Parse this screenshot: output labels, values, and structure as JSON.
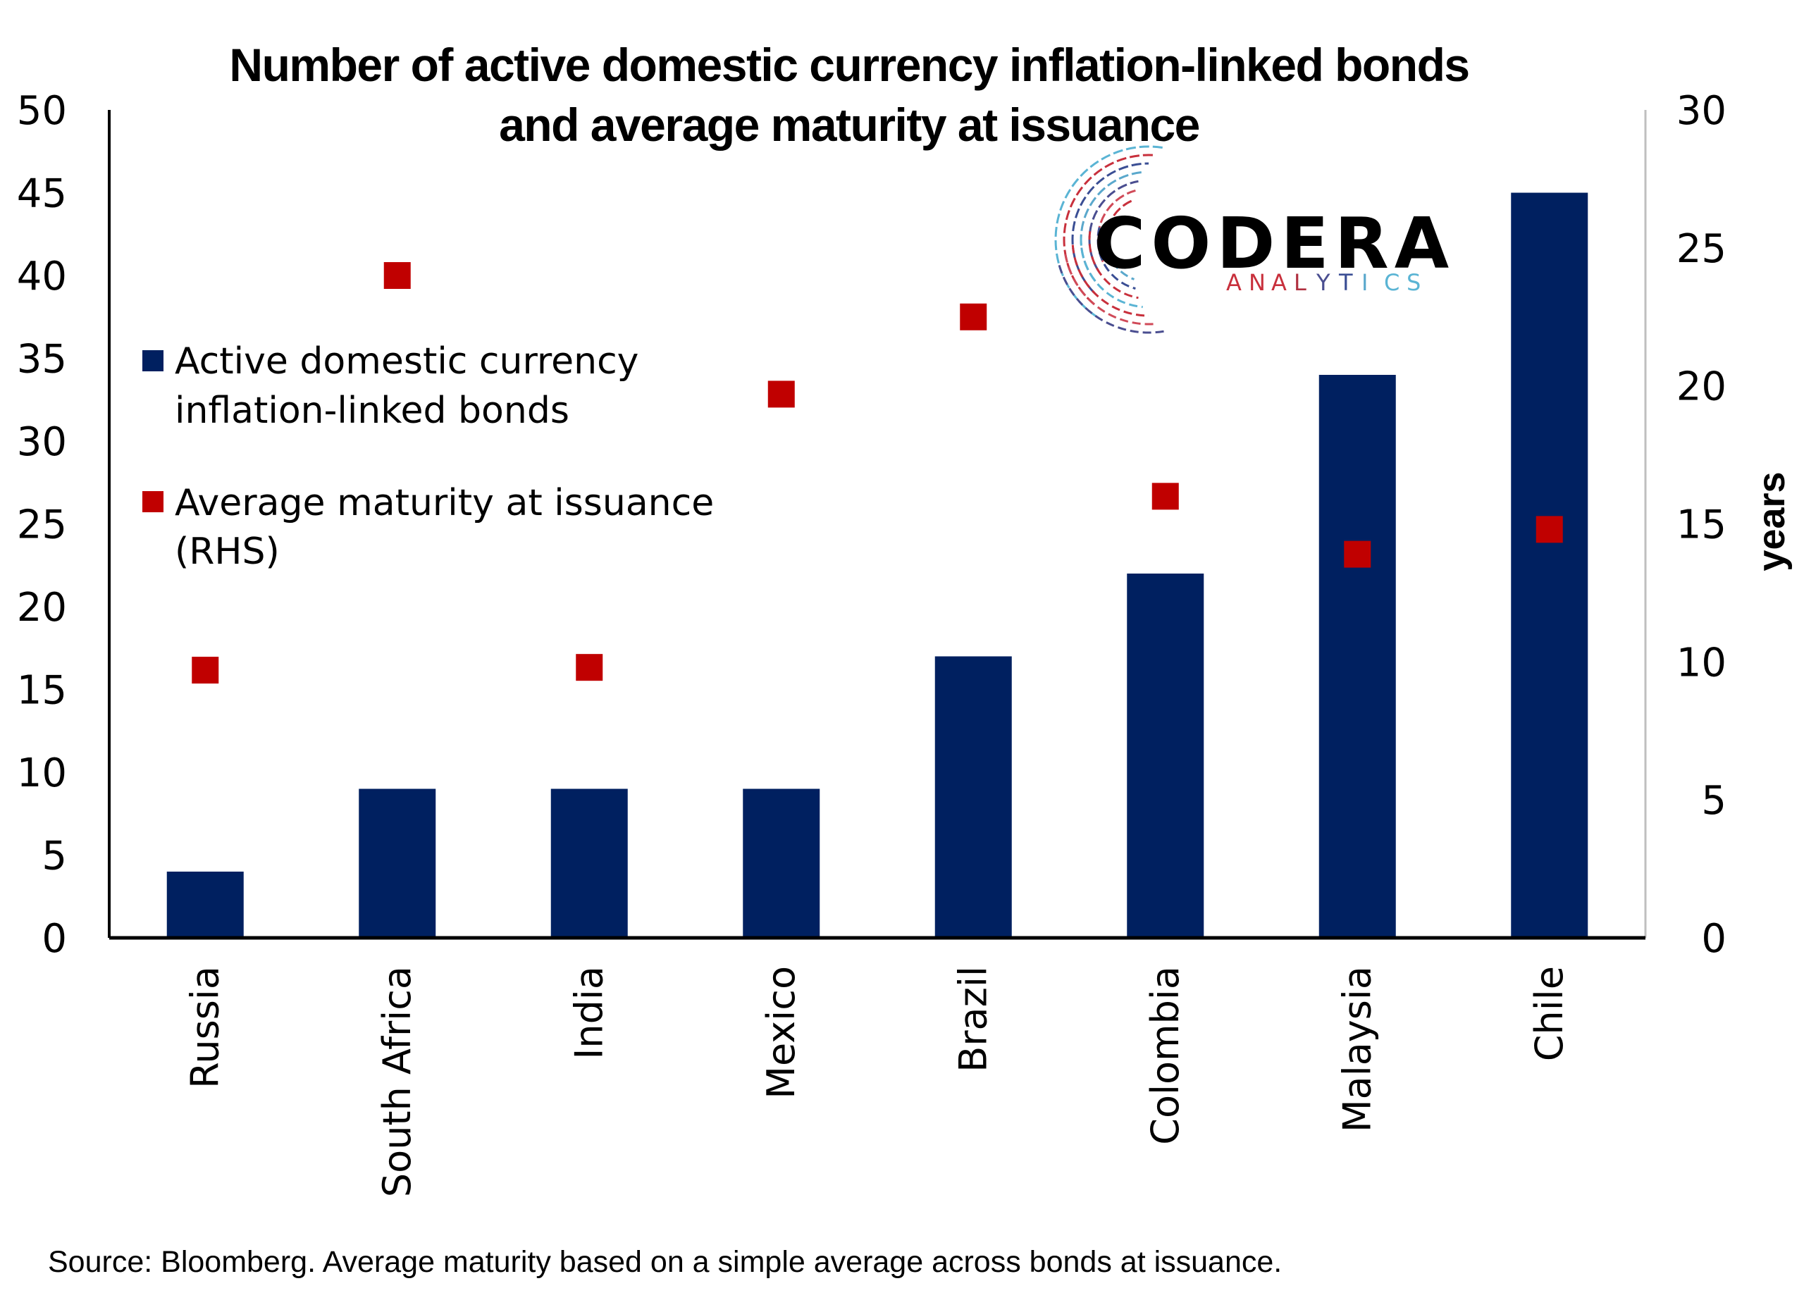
{
  "chart_data": {
    "type": "bar",
    "title_lines": [
      "Number of active domestic currency inflation-linked bonds",
      "and average maturity at issuance"
    ],
    "categories": [
      "Russia",
      "South Africa",
      "India",
      "Mexico",
      "Brazil",
      "Colombia",
      "Malaysia",
      "Chile"
    ],
    "series": [
      {
        "name": "Active domestic currency inflation-linked bonds",
        "legend_lines": [
          "Active domestic currency",
          "inflation-linked bonds"
        ],
        "type": "bar",
        "axis": "left",
        "color": "#002060",
        "values": [
          4,
          9,
          9,
          9,
          17,
          22,
          34,
          45
        ]
      },
      {
        "name": "Average maturity at issuance (RHS)",
        "legend_lines": [
          "Average maturity at issuance",
          "(RHS)"
        ],
        "type": "scatter",
        "marker": "square",
        "axis": "right",
        "color": "#C00000",
        "values": [
          9.7,
          24.0,
          9.8,
          19.7,
          22.5,
          16.0,
          13.9,
          14.8
        ]
      }
    ],
    "y_left": {
      "label": "",
      "lim": [
        0,
        50
      ],
      "ticks": [
        0,
        5,
        10,
        15,
        20,
        25,
        30,
        35,
        40,
        45,
        50
      ]
    },
    "y_right": {
      "label": "years",
      "lim": [
        0,
        30
      ],
      "ticks": [
        0,
        5,
        10,
        15,
        20,
        25,
        30
      ]
    },
    "xlabel": "",
    "grid": false,
    "legend_position": "left-center",
    "source_note": "Source: Bloomberg. Average maturity based on a simple average across bonds at issuance."
  },
  "logo": {
    "name": "CODERA",
    "sub_letters": [
      "A",
      "N",
      "A",
      "L",
      "Y",
      "T",
      "I",
      "C",
      "S"
    ],
    "sub_colors": [
      "#C8303C",
      "#C8303C",
      "#C8303C",
      "#B03040",
      "#4A4E90",
      "#3A4E94",
      "#5AA8CC",
      "#5AB4D4",
      "#5AB4D4"
    ]
  }
}
